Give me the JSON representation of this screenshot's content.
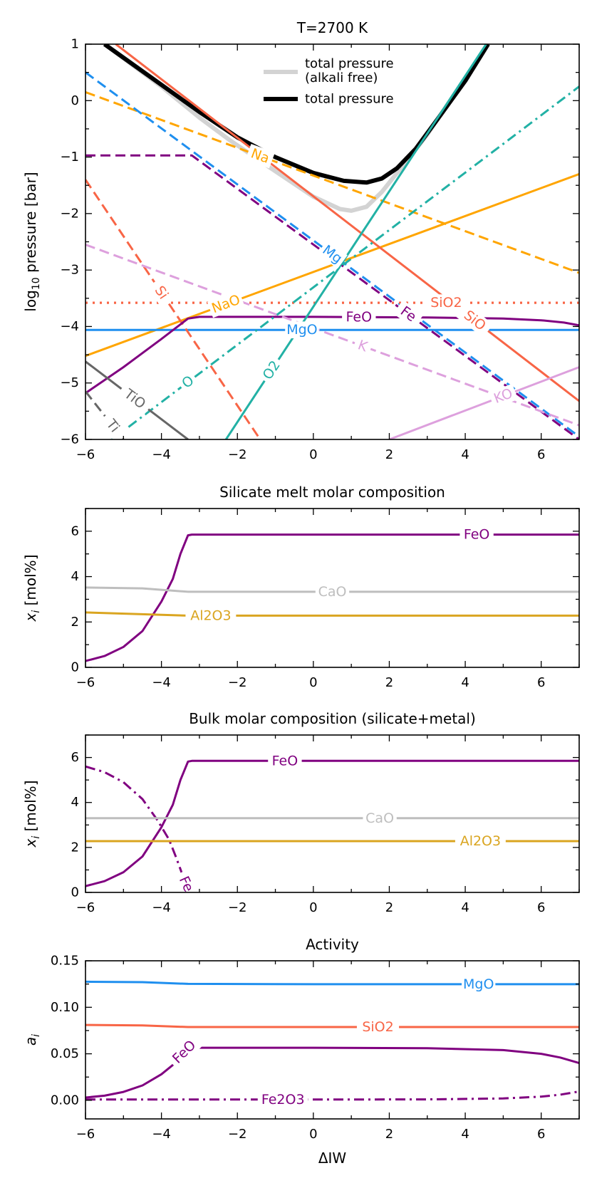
{
  "x_label": "ΔIW",
  "colors": {
    "Na": "#ffa500",
    "Mg": "#1f8fef",
    "Si": "#f86546",
    "Fe": "#800080",
    "K": "#dda0dd",
    "Ti": "#666666",
    "O": "#22b1a5",
    "total_gray": "#d3d3d3",
    "total_black": "#000000",
    "CaO": "#bebebe",
    "Al2O3": "#daa520"
  },
  "chart_data": [
    {
      "id": "pressure",
      "type": "line",
      "title": "T=2700 K",
      "xlabel": "",
      "ylabel_prefix": "log",
      "ylabel_sub": "10",
      "ylabel_suffix": " pressure [bar]",
      "xlim": [
        -6,
        7
      ],
      "ylim": [
        -6,
        1
      ],
      "xticks": [
        -6,
        -4,
        -2,
        0,
        2,
        4,
        6
      ],
      "yticks": [
        -6,
        -5,
        -4,
        -3,
        -2,
        -1,
        0,
        1
      ],
      "legend": [
        "total pressure\n(alkali free)",
        "total pressure"
      ],
      "series": [
        {
          "name": "total pressure (alkali free)",
          "color": "total_gray",
          "style": "solid",
          "width": 6,
          "x": [
            -5.5,
            -4,
            -3,
            -2.2,
            -1,
            0,
            0.7,
            1,
            1.4,
            1.8,
            2.3,
            3,
            3.6,
            4.2,
            4.6
          ],
          "y": [
            1.0,
            0.25,
            -0.3,
            -0.7,
            -1.25,
            -1.7,
            -1.92,
            -1.95,
            -1.88,
            -1.62,
            -1.2,
            -0.6,
            0.0,
            0.6,
            1.0
          ]
        },
        {
          "name": "total pressure",
          "color": "total_black",
          "style": "solid",
          "width": 6,
          "x": [
            -5.5,
            -4,
            -3,
            -2,
            -1,
            0,
            0.8,
            1.4,
            1.8,
            2.2,
            2.7,
            3.3,
            4.0,
            4.6
          ],
          "y": [
            1.0,
            0.28,
            -0.2,
            -0.65,
            -1.0,
            -1.28,
            -1.42,
            -1.45,
            -1.38,
            -1.2,
            -0.85,
            -0.3,
            0.35,
            1.0
          ]
        },
        {
          "name": "Na",
          "label": "Na",
          "label_x": -1.4,
          "color": "Na",
          "style": "dashed",
          "width": 3,
          "x": [
            -6,
            7
          ],
          "y": [
            0.15,
            -3.05
          ]
        },
        {
          "name": "NaO",
          "label": "NaO",
          "label_x": -2.3,
          "color": "Na",
          "style": "solid",
          "width": 3,
          "x": [
            -6,
            7
          ],
          "y": [
            -4.52,
            -1.3
          ]
        },
        {
          "name": "Mg",
          "label": "Mg",
          "label_x": 0.5,
          "color": "Mg",
          "style": "dashed",
          "width": 3,
          "x": [
            -6,
            7
          ],
          "y": [
            0.5,
            -5.95
          ]
        },
        {
          "name": "MgO",
          "label": "MgO",
          "label_x": -0.3,
          "color": "Mg",
          "style": "solid",
          "width": 3,
          "x": [
            -6,
            7
          ],
          "y": [
            -4.06,
            -4.06
          ]
        },
        {
          "name": "SiO2",
          "label": "SiO2",
          "label_x": 3.5,
          "color": "Si",
          "style": "dotted",
          "width": 3.2,
          "x": [
            -6,
            7
          ],
          "y": [
            -3.58,
            -3.58
          ]
        },
        {
          "name": "SiO",
          "label": "SiO",
          "label_x": 4.25,
          "color": "Si",
          "style": "solid",
          "width": 3,
          "x": [
            -5.2,
            7
          ],
          "y": [
            1.0,
            -5.32
          ]
        },
        {
          "name": "Si",
          "label": "Si",
          "label_x": -4.0,
          "color": "Si",
          "style": "dashed",
          "width": 3,
          "x": [
            -6,
            -1.4
          ],
          "y": [
            -1.4,
            -6.0
          ]
        },
        {
          "name": "FeO",
          "label": "FeO",
          "label_x": 1.2,
          "color": "Fe",
          "style": "solid",
          "width": 3,
          "x": [
            -6,
            -5,
            -4,
            -3.3,
            -3,
            0,
            3,
            5,
            6,
            6.6,
            7
          ],
          "y": [
            -5.18,
            -4.72,
            -4.22,
            -3.86,
            -3.83,
            -3.83,
            -3.84,
            -3.86,
            -3.89,
            -3.93,
            -3.98
          ]
        },
        {
          "name": "Fe",
          "label": "Fe",
          "label_x": 2.5,
          "color": "Fe",
          "style": "dashed",
          "width": 3,
          "x": [
            -6,
            -3.2,
            7
          ],
          "y": [
            -0.97,
            -0.97,
            -6.0
          ]
        },
        {
          "name": "K",
          "label": "K",
          "label_x": 1.3,
          "color": "K",
          "style": "dashed",
          "width": 3,
          "x": [
            -6,
            7
          ],
          "y": [
            -2.55,
            -5.75
          ]
        },
        {
          "name": "KO",
          "label": "KO",
          "label_x": 5.0,
          "color": "K",
          "style": "solid",
          "width": 3,
          "x": [
            2,
            7
          ],
          "y": [
            -6.0,
            -4.72
          ]
        },
        {
          "name": "O",
          "label": "O",
          "label_x": -3.3,
          "color": "O",
          "style": "dashdot",
          "width": 3,
          "x": [
            -5.3,
            7
          ],
          "y": [
            -6.0,
            0.25
          ]
        },
        {
          "name": "O2",
          "label": "O2",
          "label_x": -1.1,
          "color": "O",
          "style": "solid",
          "width": 3,
          "x": [
            -2.3,
            4.55
          ],
          "y": [
            -6.0,
            1.0
          ]
        },
        {
          "name": "TiO",
          "label": "TiO",
          "label_x": -4.7,
          "color": "Ti",
          "style": "solid",
          "width": 3,
          "x": [
            -6,
            -3.3
          ],
          "y": [
            -4.62,
            -6.0
          ]
        },
        {
          "name": "Ti",
          "label": "Ti",
          "label_x": -5.28,
          "color": "Ti",
          "style": "dashed",
          "width": 3,
          "x": [
            -6,
            -5.0
          ],
          "y": [
            -5.15,
            -6.0
          ]
        }
      ]
    },
    {
      "id": "melt",
      "type": "line",
      "title": "Silicate melt molar composition",
      "xlabel": "",
      "ylabel_italic": "x",
      "ylabel_sub": "i",
      "ylabel_suffix": " [mol%]",
      "xlim": [
        -6,
        7
      ],
      "ylim": [
        0,
        7
      ],
      "xticks": [
        -6,
        -4,
        -2,
        0,
        2,
        4,
        6
      ],
      "yticks": [
        0,
        2,
        4,
        6
      ],
      "series": [
        {
          "name": "FeO",
          "label": "FeO",
          "label_x": 4.3,
          "color": "Fe",
          "style": "solid",
          "width": 3,
          "x": [
            -6,
            -5.5,
            -5,
            -4.5,
            -4,
            -3.7,
            -3.5,
            -3.3,
            -3.2,
            7
          ],
          "y": [
            0.28,
            0.5,
            0.9,
            1.6,
            2.9,
            3.9,
            5.0,
            5.82,
            5.85,
            5.85
          ]
        },
        {
          "name": "CaO",
          "label": "CaO",
          "label_x": 0.5,
          "color": "CaO",
          "style": "solid",
          "width": 3,
          "x": [
            -6,
            -4.5,
            -3.3,
            7
          ],
          "y": [
            3.52,
            3.48,
            3.33,
            3.33
          ]
        },
        {
          "name": "Al2O3",
          "label": "Al2O3",
          "label_x": -2.7,
          "color": "Al2O3",
          "style": "solid",
          "width": 3,
          "x": [
            -6,
            -3.3,
            7
          ],
          "y": [
            2.42,
            2.28,
            2.28
          ]
        }
      ]
    },
    {
      "id": "bulk",
      "type": "line",
      "title": "Bulk molar composition (silicate+metal)",
      "xlabel": "",
      "ylabel_italic": "x",
      "ylabel_sub": "i",
      "ylabel_suffix": " [mol%]",
      "xlim": [
        -6,
        7
      ],
      "ylim": [
        0,
        7
      ],
      "xticks": [
        -6,
        -4,
        -2,
        0,
        2,
        4,
        6
      ],
      "yticks": [
        0,
        2,
        4,
        6
      ],
      "series": [
        {
          "name": "FeO",
          "label": "FeO",
          "label_x": -0.75,
          "color": "Fe",
          "style": "solid",
          "width": 3,
          "x": [
            -6,
            -5.5,
            -5,
            -4.5,
            -4,
            -3.7,
            -3.5,
            -3.3,
            -3.2,
            7
          ],
          "y": [
            0.28,
            0.5,
            0.9,
            1.6,
            2.9,
            3.9,
            5.0,
            5.82,
            5.85,
            5.85
          ]
        },
        {
          "name": "Fe",
          "label": "Fe",
          "label_x": -3.35,
          "color": "Fe",
          "style": "dashdot",
          "width": 3,
          "x": [
            -6,
            -5.5,
            -5,
            -4.5,
            -4.1,
            -3.8,
            -3.6,
            -3.45,
            -3.3,
            -3.22
          ],
          "y": [
            5.6,
            5.35,
            4.9,
            4.15,
            3.2,
            2.35,
            1.5,
            0.8,
            0.15,
            0.0
          ]
        },
        {
          "name": "CaO",
          "label": "CaO",
          "label_x": 1.75,
          "color": "CaO",
          "style": "solid",
          "width": 3,
          "x": [
            -6,
            7
          ],
          "y": [
            3.3,
            3.3
          ]
        },
        {
          "name": "Al2O3",
          "label": "Al2O3",
          "label_x": 4.4,
          "color": "Al2O3",
          "style": "solid",
          "width": 3,
          "x": [
            -6,
            7
          ],
          "y": [
            2.28,
            2.28
          ]
        }
      ]
    },
    {
      "id": "activity",
      "type": "line",
      "title": "Activity",
      "xlabel": "ΔIW",
      "ylabel_italic": "a",
      "ylabel_sub": "i",
      "ylabel_suffix": "",
      "xlim": [
        -6,
        7
      ],
      "ylim": [
        -0.02,
        0.15
      ],
      "xticks": [
        -6,
        -4,
        -2,
        0,
        2,
        4,
        6
      ],
      "yticks": [
        0.0,
        0.05,
        0.1,
        0.15
      ],
      "ytick_labels": [
        "0.00",
        "0.05",
        "0.10",
        "0.15"
      ],
      "series": [
        {
          "name": "MgO",
          "label": "MgO",
          "label_x": 4.35,
          "color": "Mg",
          "style": "solid",
          "width": 3,
          "x": [
            -6,
            -4.5,
            -3.3,
            0,
            7
          ],
          "y": [
            0.1275,
            0.127,
            0.1252,
            0.1248,
            0.1248
          ]
        },
        {
          "name": "SiO2",
          "label": "SiO2",
          "label_x": 1.7,
          "color": "Si",
          "style": "solid",
          "width": 3,
          "x": [
            -6,
            -4.5,
            -3.3,
            7
          ],
          "y": [
            0.081,
            0.0805,
            0.0788,
            0.0788
          ]
        },
        {
          "name": "FeO",
          "label": "FeO",
          "label_x": -3.4,
          "color": "Fe",
          "style": "solid",
          "width": 3,
          "x": [
            -6,
            -5.5,
            -5,
            -4.5,
            -4,
            -3.7,
            -3.5,
            -3.3,
            -3.2,
            0,
            3,
            5,
            6,
            6.5,
            7
          ],
          "y": [
            0.003,
            0.005,
            0.009,
            0.016,
            0.028,
            0.038,
            0.048,
            0.056,
            0.0565,
            0.0565,
            0.056,
            0.054,
            0.05,
            0.046,
            0.04
          ]
        },
        {
          "name": "Fe2O3",
          "label": "Fe2O3",
          "label_x": -0.8,
          "color": "Fe",
          "style": "dashdot",
          "width": 3,
          "x": [
            -6,
            0,
            3,
            5,
            6,
            6.5,
            7
          ],
          "y": [
            0.0008,
            0.0008,
            0.001,
            0.002,
            0.004,
            0.006,
            0.0095
          ]
        }
      ]
    }
  ]
}
